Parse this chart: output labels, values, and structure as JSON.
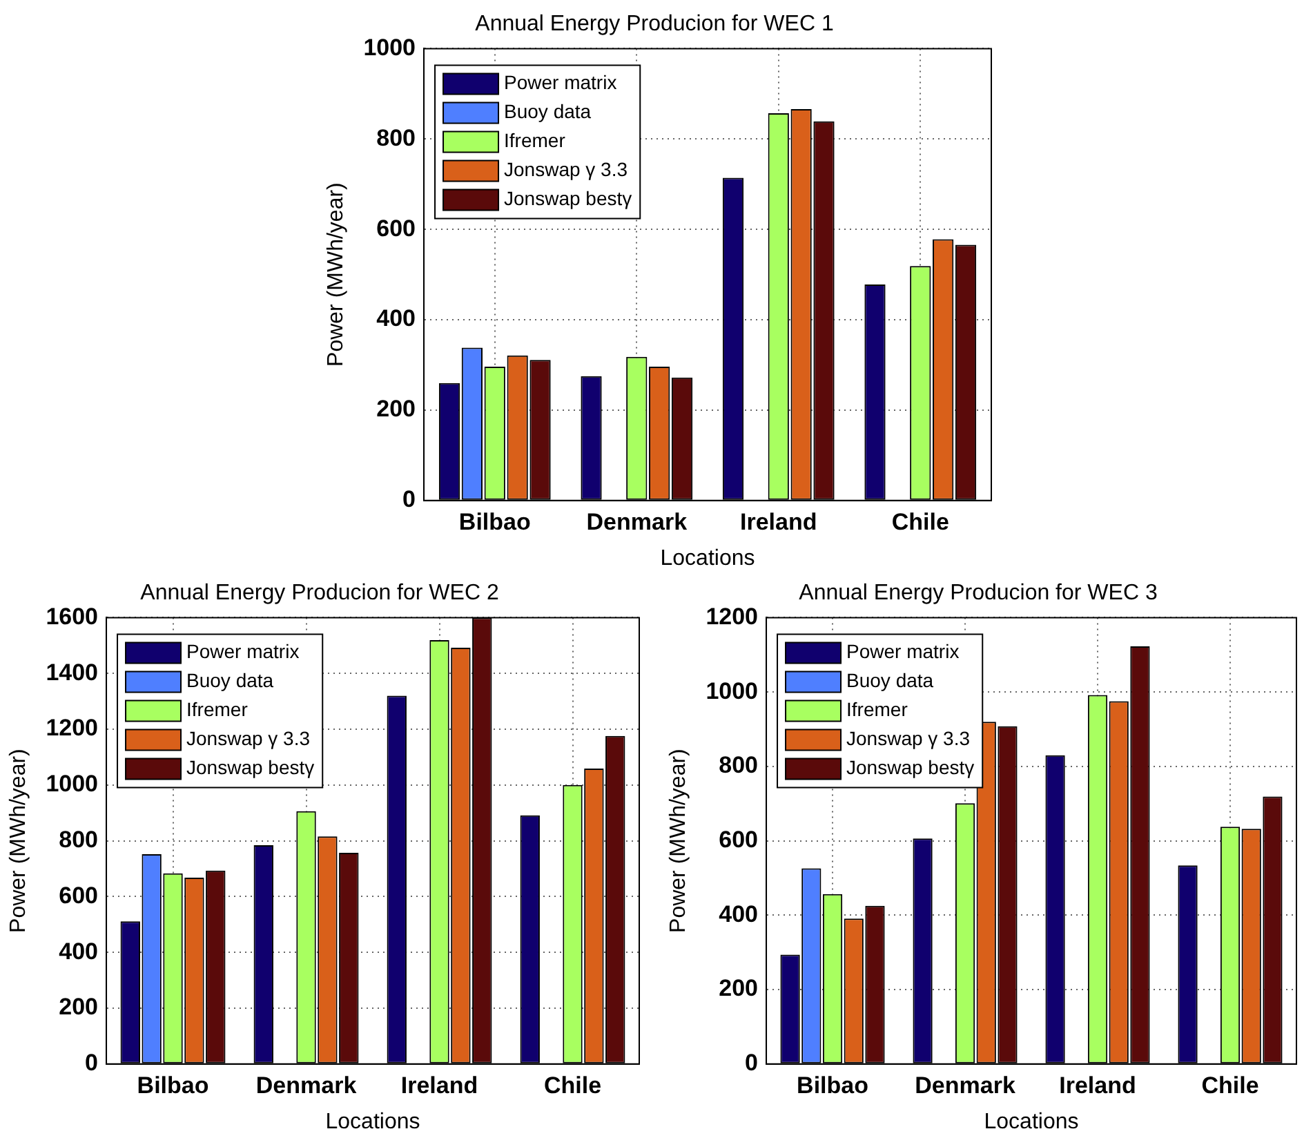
{
  "chart_data": [
    {
      "type": "bar",
      "title": "Annual Energy Producion for WEC 1",
      "xlabel": "Locations",
      "ylabel": "Power (MWh/year)",
      "categories": [
        "Bilbao",
        "Denmark",
        "Ireland",
        "Chile"
      ],
      "ylim": [
        0,
        1000
      ],
      "yticks": [
        0,
        200,
        400,
        600,
        800,
        1000
      ],
      "grid": true,
      "legend": "top left",
      "series": [
        {
          "name": "Power matrix",
          "color": "#10006e",
          "values": [
            260,
            275,
            714,
            478
          ]
        },
        {
          "name": "Buoy data",
          "color": "#4f7fff",
          "values": [
            338,
            null,
            null,
            null
          ]
        },
        {
          "name": "Ifremer",
          "color": "#a8ff60",
          "values": [
            296,
            318,
            857,
            519
          ]
        },
        {
          "name": "Jonswap γ 3.3",
          "color": "#d9601a",
          "values": [
            321,
            296,
            866,
            578
          ]
        },
        {
          "name": "Jonswap bestγ",
          "color": "#5a0a0a",
          "values": [
            311,
            272,
            839,
            566
          ]
        }
      ]
    },
    {
      "type": "bar",
      "title": "Annual Energy Producion for WEC 2",
      "xlabel": "Locations",
      "ylabel": "Power (MWh/year)",
      "categories": [
        "Bilbao",
        "Denmark",
        "Ireland",
        "Chile"
      ],
      "ylim": [
        0,
        1600
      ],
      "yticks": [
        0,
        200,
        400,
        600,
        800,
        1000,
        1200,
        1400,
        1600
      ],
      "grid": true,
      "legend": "top left",
      "series": [
        {
          "name": "Power matrix",
          "color": "#10006e",
          "values": [
            511,
            784,
            1320,
            891
          ]
        },
        {
          "name": "Buoy data",
          "color": "#4f7fff",
          "values": [
            752,
            null,
            null,
            null
          ]
        },
        {
          "name": "Ifremer",
          "color": "#a8ff60",
          "values": [
            683,
            906,
            1519,
            1000
          ]
        },
        {
          "name": "Jonswap γ 3.3",
          "color": "#d9601a",
          "values": [
            668,
            816,
            1492,
            1059
          ]
        },
        {
          "name": "Jonswap bestγ",
          "color": "#5a0a0a",
          "values": [
            693,
            757,
            1600,
            1176
          ]
        }
      ]
    },
    {
      "type": "bar",
      "title": "Annual Energy Producion for WEC 3",
      "xlabel": "Locations",
      "ylabel": "Power (MWh/year)",
      "categories": [
        "Bilbao",
        "Denmark",
        "Ireland",
        "Chile"
      ],
      "ylim": [
        0,
        1200
      ],
      "yticks": [
        0,
        200,
        400,
        600,
        800,
        1000,
        1200
      ],
      "grid": true,
      "legend": "top left",
      "series": [
        {
          "name": "Power matrix",
          "color": "#10006e",
          "values": [
            294,
            606,
            830,
            534
          ]
        },
        {
          "name": "Buoy data",
          "color": "#4f7fff",
          "values": [
            526,
            null,
            null,
            null
          ]
        },
        {
          "name": "Ifremer",
          "color": "#a8ff60",
          "values": [
            457,
            701,
            992,
            638
          ]
        },
        {
          "name": "Jonswap γ 3.3",
          "color": "#d9601a",
          "values": [
            391,
            920,
            975,
            632
          ]
        },
        {
          "name": "Jonswap bestγ",
          "color": "#5a0a0a",
          "values": [
            425,
            908,
            1123,
            719
          ]
        }
      ]
    }
  ]
}
